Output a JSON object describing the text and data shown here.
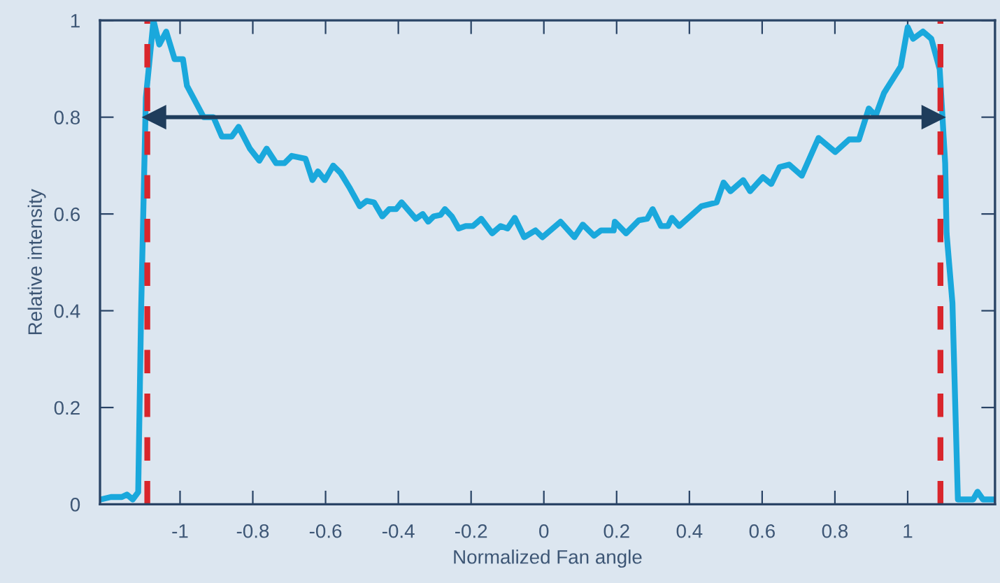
{
  "chart_data": {
    "type": "line",
    "xlabel": "Normalized Fan angle",
    "ylabel": "Relative intensity",
    "xlim": [
      -1.22,
      1.24
    ],
    "ylim": [
      0,
      1
    ],
    "xticks": [
      -1,
      -0.8,
      -0.6,
      -0.4,
      -0.2,
      0,
      0.2,
      0.4,
      0.6,
      0.8,
      1
    ],
    "yticks": [
      0,
      0.2,
      0.4,
      0.6,
      0.8,
      1
    ],
    "grid": false,
    "legend": false,
    "marker": "none",
    "line_style": "solid",
    "ref_lines": [
      {
        "axis": "x",
        "value": -1.09,
        "color": "#d9262c",
        "line_style": "dashed"
      },
      {
        "axis": "x",
        "value": 1.09,
        "color": "#d9262c",
        "line_style": "dashed"
      },
      {
        "axis": "y",
        "value": 0.8,
        "color": "#1f3d5c",
        "line_style": "solid"
      }
    ],
    "series": [
      {
        "color": "#1aa8dc",
        "x": [
          -1.218,
          -1.19,
          -1.16,
          -1.146,
          -1.13,
          -1.115,
          -1.107,
          -1.094,
          -1.073,
          -1.057,
          -1.038,
          -1.015,
          -0.992,
          -0.981,
          -0.935,
          -0.908,
          -0.885,
          -0.858,
          -0.839,
          -0.808,
          -0.782,
          -0.762,
          -0.736,
          -0.713,
          -0.693,
          -0.655,
          -0.636,
          -0.621,
          -0.602,
          -0.579,
          -0.559,
          -0.533,
          -0.506,
          -0.487,
          -0.467,
          -0.444,
          -0.425,
          -0.406,
          -0.391,
          -0.352,
          -0.333,
          -0.318,
          -0.303,
          -0.284,
          -0.272,
          -0.253,
          -0.234,
          -0.215,
          -0.195,
          -0.172,
          -0.142,
          -0.119,
          -0.1,
          -0.08,
          -0.054,
          -0.023,
          -0.004,
          0.046,
          0.084,
          0.107,
          0.138,
          0.157,
          0.192,
          0.195,
          0.226,
          0.261,
          0.284,
          0.299,
          0.322,
          0.341,
          0.352,
          0.372,
          0.433,
          0.475,
          0.494,
          0.513,
          0.548,
          0.567,
          0.602,
          0.625,
          0.648,
          0.674,
          0.709,
          0.755,
          0.801,
          0.839,
          0.866,
          0.893,
          0.912,
          0.935,
          0.981,
          1.0,
          1.015,
          1.042,
          1.065,
          1.088,
          1.103,
          1.107,
          1.123,
          1.138,
          1.153,
          1.18,
          1.192,
          1.207,
          1.237
        ],
        "values": [
          0.01,
          0.015,
          0.015,
          0.02,
          0.01,
          0.025,
          0.4,
          0.84,
          1.0,
          0.95,
          0.977,
          0.92,
          0.92,
          0.865,
          0.8,
          0.8,
          0.76,
          0.76,
          0.78,
          0.735,
          0.71,
          0.735,
          0.705,
          0.705,
          0.72,
          0.714,
          0.67,
          0.688,
          0.67,
          0.7,
          0.685,
          0.653,
          0.616,
          0.627,
          0.624,
          0.595,
          0.61,
          0.61,
          0.624,
          0.59,
          0.6,
          0.584,
          0.595,
          0.598,
          0.61,
          0.595,
          0.57,
          0.575,
          0.575,
          0.59,
          0.56,
          0.575,
          0.57,
          0.592,
          0.552,
          0.566,
          0.552,
          0.584,
          0.552,
          0.578,
          0.555,
          0.566,
          0.566,
          0.584,
          0.56,
          0.587,
          0.59,
          0.61,
          0.575,
          0.575,
          0.592,
          0.575,
          0.616,
          0.624,
          0.665,
          0.647,
          0.67,
          0.647,
          0.676,
          0.662,
          0.697,
          0.702,
          0.679,
          0.757,
          0.728,
          0.754,
          0.754,
          0.818,
          0.803,
          0.85,
          0.905,
          0.986,
          0.962,
          0.977,
          0.962,
          0.899,
          0.705,
          0.56,
          0.416,
          0.01,
          0.01,
          0.01,
          0.026,
          0.01,
          0.01
        ]
      }
    ]
  }
}
